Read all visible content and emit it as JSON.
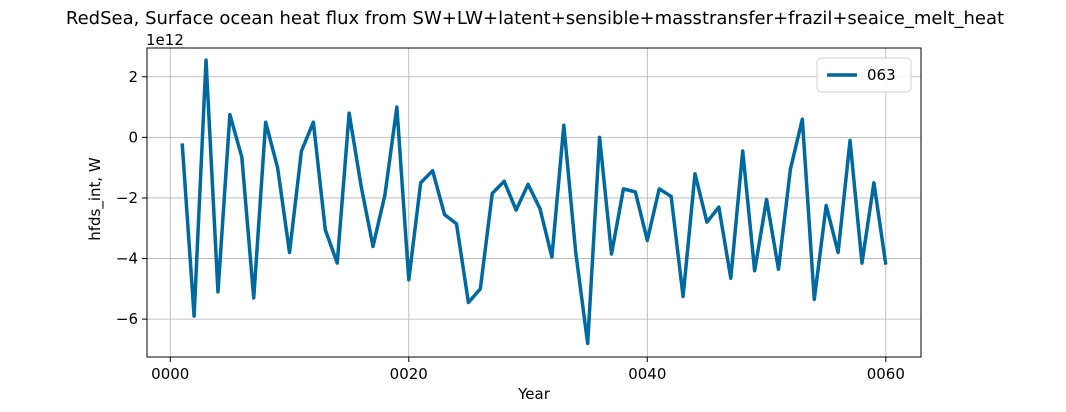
{
  "chart_data": {
    "type": "line",
    "title": "RedSea, Surface ocean heat flux from SW+LW+latent+sensible+masstransfer+frazil+seaice_melt_heat",
    "xlabel": "Year",
    "ylabel": "hfds_int, W",
    "y_offset_label": "1e12",
    "y_scale_factor": 1000000000000.0,
    "xlim": [
      -1.95,
      62.95
    ],
    "ylim": [
      -7250000000000.0,
      2950000000000.0
    ],
    "x_ticks": [
      0,
      20,
      40,
      60
    ],
    "x_tick_labels": [
      "0000",
      "0020",
      "0040",
      "0060"
    ],
    "y_ticks": [
      -6000000000000.0,
      -4000000000000.0,
      -2000000000000.0,
      0,
      2000000000000.0
    ],
    "y_tick_labels": [
      "−6",
      "−4",
      "−2",
      "0",
      "2"
    ],
    "grid": true,
    "legend_position": "upper right",
    "series": [
      {
        "name": "063",
        "color": "#0069a0",
        "x": [
          1,
          2,
          3,
          4,
          5,
          6,
          7,
          8,
          9,
          10,
          11,
          12,
          13,
          14,
          15,
          16,
          17,
          18,
          19,
          20,
          21,
          22,
          23,
          24,
          25,
          26,
          27,
          28,
          29,
          30,
          31,
          32,
          33,
          34,
          35,
          36,
          37,
          38,
          39,
          40,
          41,
          42,
          43,
          44,
          45,
          46,
          47,
          48,
          49,
          50,
          51,
          52,
          53,
          54,
          55,
          56,
          57,
          58,
          59,
          60
        ],
        "y": [
          -200000000000.0,
          -5900000000000.0,
          2550000000000.0,
          -5100000000000.0,
          750000000000.0,
          -650000000000.0,
          -5300000000000.0,
          500000000000.0,
          -1000000000000.0,
          -3800000000000.0,
          -450000000000.0,
          500000000000.0,
          -3050000000000.0,
          -4150000000000.0,
          800000000000.0,
          -1600000000000.0,
          -3600000000000.0,
          -1900000000000.0,
          1000000000000.0,
          -4700000000000.0,
          -1500000000000.0,
          -1100000000000.0,
          -2550000000000.0,
          -2850000000000.0,
          -5450000000000.0,
          -5000000000000.0,
          -1850000000000.0,
          -1450000000000.0,
          -2400000000000.0,
          -1550000000000.0,
          -2350000000000.0,
          -3950000000000.0,
          400000000000.0,
          -3800000000000.0,
          -6800000000000.0,
          0.0,
          -3850000000000.0,
          -1700000000000.0,
          -1800000000000.0,
          -3400000000000.0,
          -1700000000000.0,
          -1950000000000.0,
          -5250000000000.0,
          -1200000000000.0,
          -2800000000000.0,
          -2300000000000.0,
          -4650000000000.0,
          -450000000000.0,
          -4400000000000.0,
          -2050000000000.0,
          -4350000000000.0,
          -1050000000000.0,
          600000000000.0,
          -5350000000000.0,
          -2250000000000.0,
          -3800000000000.0,
          -100000000000.0,
          -4150000000000.0,
          -1500000000000.0,
          -4200000000000.0
        ]
      }
    ]
  }
}
